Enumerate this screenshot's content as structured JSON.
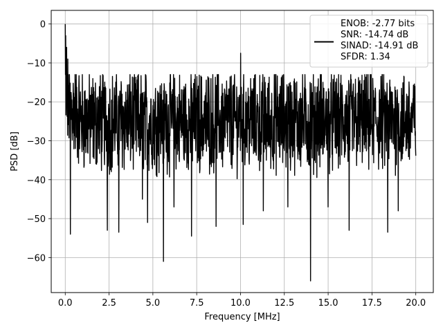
{
  "chart_data": {
    "type": "line",
    "title": "",
    "xlabel": "Frequency [MHz]",
    "ylabel": "PSD [dB]",
    "xlim": [
      -0.8,
      21.0
    ],
    "ylim": [
      -69,
      3.5
    ],
    "xticks": [
      0.0,
      2.5,
      5.0,
      7.5,
      10.0,
      12.5,
      15.0,
      17.5,
      20.0
    ],
    "xtick_labels": [
      "0.0",
      "2.5",
      "5.0",
      "7.5",
      "10.0",
      "12.5",
      "15.0",
      "17.5",
      "20.0"
    ],
    "yticks": [
      0,
      -10,
      -20,
      -30,
      -40,
      -50,
      -60
    ],
    "ytick_labels": [
      "0",
      "−10",
      "−20",
      "−30",
      "−40",
      "−50",
      "−60"
    ],
    "grid": true,
    "legend_position": "top-right",
    "legend_lines": [
      "ENOB: -2.77 bits",
      "SNR: -14.74 dB",
      "SINAD: -14.91 dB",
      "SFDR: 1.34"
    ],
    "series_color": "#000000",
    "series": [
      {
        "x_range": [
          0.0,
          20.0
        ],
        "points": 1500,
        "baseline": -25,
        "peaks": [
          {
            "x": 0.0,
            "y": 0.0
          },
          {
            "x": 0.03,
            "y": -3
          },
          {
            "x": 0.08,
            "y": -6
          },
          {
            "x": 0.15,
            "y": -9
          },
          {
            "x": 10.0,
            "y": -7.5
          }
        ],
        "notches": [
          {
            "x": 0.3,
            "y": -54
          },
          {
            "x": 2.4,
            "y": -53
          },
          {
            "x": 3.05,
            "y": -53.5
          },
          {
            "x": 4.4,
            "y": -45
          },
          {
            "x": 4.7,
            "y": -51
          },
          {
            "x": 5.6,
            "y": -61
          },
          {
            "x": 6.2,
            "y": -47
          },
          {
            "x": 7.2,
            "y": -54.5
          },
          {
            "x": 8.6,
            "y": -52
          },
          {
            "x": 10.15,
            "y": -51.5
          },
          {
            "x": 11.3,
            "y": -48
          },
          {
            "x": 12.7,
            "y": -47
          },
          {
            "x": 14.0,
            "y": -66
          },
          {
            "x": 15.0,
            "y": -47
          },
          {
            "x": 16.2,
            "y": -53
          },
          {
            "x": 18.4,
            "y": -53.5
          },
          {
            "x": 19.0,
            "y": -48
          }
        ]
      }
    ]
  }
}
